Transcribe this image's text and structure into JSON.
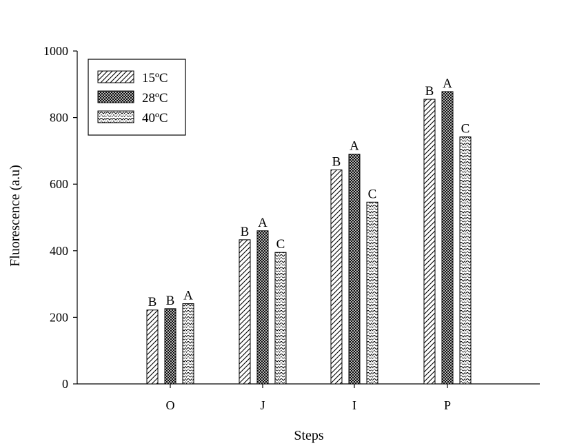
{
  "chart_data": {
    "type": "bar",
    "title": "",
    "xlabel": "Steps",
    "ylabel": "Fluorescence (a.u)",
    "ylim": [
      0,
      1000
    ],
    "yticks": [
      0,
      200,
      400,
      600,
      800,
      1000
    ],
    "grid": false,
    "legend_position": "top-left",
    "categories": [
      "O",
      "J",
      "I",
      "P"
    ],
    "series": [
      {
        "name": "15ºC",
        "pattern": "diagonal-hatch",
        "values": [
          222,
          433,
          643,
          855
        ],
        "labels": [
          "B",
          "B",
          "B",
          "B"
        ]
      },
      {
        "name": "28ºC",
        "pattern": "crosshatch",
        "values": [
          226,
          460,
          690,
          878
        ],
        "labels": [
          "B",
          "A",
          "A",
          "A"
        ]
      },
      {
        "name": "40ºC",
        "pattern": "zigzag",
        "values": [
          241,
          395,
          546,
          742
        ],
        "labels": [
          "A",
          "C",
          "C",
          "C"
        ]
      }
    ]
  }
}
